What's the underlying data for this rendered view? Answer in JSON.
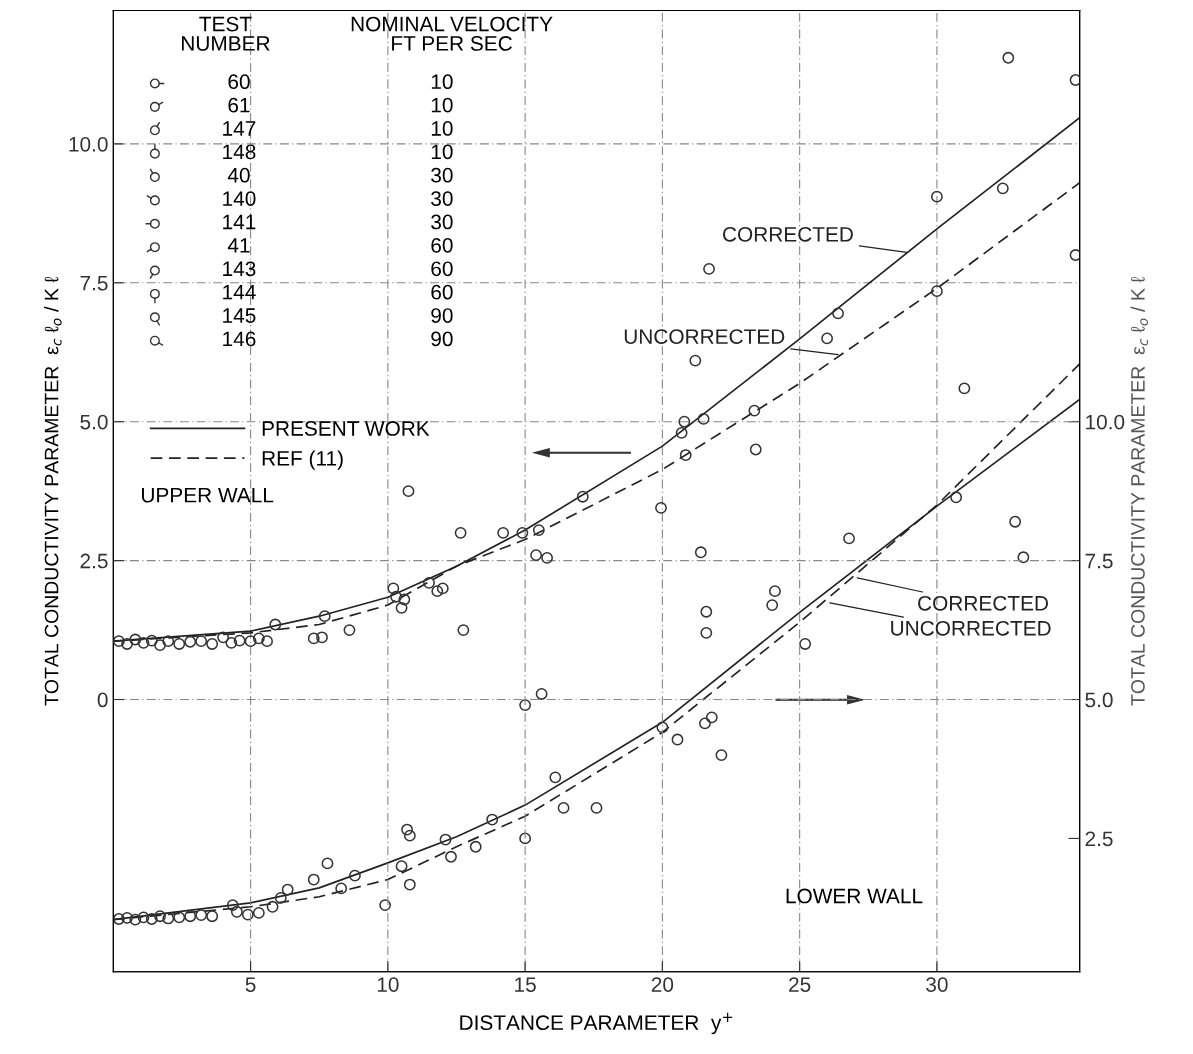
{
  "chart_data": {
    "type": "scatter",
    "xlabel": "DISTANCE PARAMETER  y$^{+}$",
    "ylabel": "TOTAL CONDUCTIVITY PARAMETER  ε$_{c}$ ℓ$_{o}$ / K ℓ",
    "y2label": "TOTAL CONDUCTIVITY PARAMETER  ε$_{c}$ ℓ$_{o}$ / K ℓ",
    "xlim": [
      0,
      35.2
    ],
    "xticks": [
      5,
      10,
      15,
      20,
      25,
      30
    ],
    "ylim": [
      -4.9,
      12.4
    ],
    "yticks": [
      {
        "value": 0,
        "label": "0"
      },
      {
        "value": 2.5,
        "label": "2.5"
      },
      {
        "value": 5.0,
        "label": "5.0"
      },
      {
        "value": 7.5,
        "label": "7.5"
      },
      {
        "value": 10.0,
        "label": "10.0"
      }
    ],
    "y2lim": [
      0.1,
      17.4
    ],
    "y2ticks": [
      {
        "value": 2.5,
        "label": "2.5"
      },
      {
        "value": 5.0,
        "label": "5.0"
      },
      {
        "value": 7.5,
        "label": "7.5"
      },
      {
        "value": 10.0,
        "label": "10.0"
      }
    ],
    "grid": true,
    "legend": "top left",
    "series": [
      {
        "color": "#333333",
        "marker": "circle",
        "x": [
          0.2,
          0.5,
          0.8,
          1.1,
          1.4,
          1.7,
          2.0,
          2.4,
          2.8,
          3.2,
          3.6,
          4.0,
          4.3,
          4.6,
          5.0,
          5.3,
          5.6,
          5.9,
          7.3,
          7.6,
          7.7,
          8.6,
          10.2,
          10.3,
          10.5,
          10.6,
          11.5,
          11.8,
          12.0,
          12.75,
          12.65,
          10.75,
          14.2,
          14.9,
          15.5,
          15.4,
          15.8,
          17.1,
          19.95,
          20.8,
          20.7,
          20.85,
          21.5,
          21.4,
          21.2,
          21.7,
          23.35,
          23.4,
          26.0,
          26.4,
          30.0,
          30.0,
          32.4,
          32.6,
          35.05,
          35.05
        ],
        "values": [
          1.05,
          1.0,
          1.08,
          1.02,
          1.06,
          0.98,
          1.05,
          1.0,
          1.04,
          1.05,
          1.0,
          1.12,
          1.02,
          1.06,
          1.05,
          1.1,
          1.05,
          1.35,
          1.1,
          1.12,
          1.5,
          1.25,
          2.0,
          1.85,
          1.65,
          1.8,
          2.1,
          1.95,
          2.0,
          1.25,
          3.0,
          3.75,
          3.0,
          3.0,
          3.05,
          2.6,
          2.55,
          3.65,
          3.45,
          5.0,
          4.8,
          4.4,
          5.05,
          2.65,
          6.1,
          7.75,
          5.2,
          4.5,
          6.5,
          6.95,
          7.35,
          9.05,
          9.2,
          11.55,
          11.15,
          8.0
        ]
      },
      {
        "axis": "y2",
        "color": "#333333",
        "marker": "circle",
        "x": [
          0.2,
          0.5,
          0.8,
          1.1,
          1.4,
          1.7,
          2.0,
          2.4,
          2.8,
          3.2,
          3.6,
          4.35,
          4.5,
          4.9,
          5.3,
          5.8,
          6.1,
          6.35,
          7.3,
          7.8,
          8.3,
          8.8,
          9.9,
          10.5,
          10.8,
          10.7,
          10.8,
          12.1,
          12.3,
          13.2,
          13.8,
          15.0,
          15.0,
          15.6,
          16.1,
          16.4,
          17.6,
          20.0,
          20.55,
          21.55,
          21.8,
          22.15,
          21.6,
          21.6,
          24.1,
          24.0,
          25.2,
          26.8,
          30.7,
          31.0,
          32.85,
          33.15
        ],
        "values": [
          1.05,
          1.07,
          1.04,
          1.08,
          1.05,
          1.1,
          1.06,
          1.08,
          1.1,
          1.12,
          1.1,
          1.3,
          1.18,
          1.13,
          1.16,
          1.27,
          1.43,
          1.58,
          1.76,
          2.05,
          1.6,
          1.83,
          1.3,
          2.0,
          1.67,
          2.66,
          2.55,
          2.48,
          2.17,
          2.35,
          2.84,
          2.5,
          4.9,
          5.1,
          3.6,
          3.05,
          3.05,
          4.5,
          4.28,
          4.57,
          4.68,
          4.0,
          6.58,
          6.2,
          6.95,
          6.7,
          6.0,
          7.9,
          8.64,
          10.6,
          8.2,
          7.56
        ]
      },
      {
        "type": "line",
        "name": "PRESENT WORK",
        "color": "#222222",
        "line_style": "solid",
        "x": [
          0,
          5,
          7.5,
          10,
          12.5,
          15,
          20,
          25,
          30,
          35.2
        ],
        "values": [
          1.05,
          1.23,
          1.5,
          1.84,
          2.4,
          3.05,
          4.56,
          6.49,
          8.47,
          10.47
        ]
      },
      {
        "type": "line",
        "name": "REF (11)",
        "color": "#222222",
        "line_style": "dashed",
        "x": [
          0,
          5,
          7.5,
          10,
          12.5,
          15,
          20,
          25,
          30,
          35.2
        ],
        "values": [
          1.05,
          1.2,
          1.35,
          1.7,
          2.4,
          2.88,
          4.14,
          5.69,
          7.4,
          9.3
        ]
      },
      {
        "type": "line",
        "axis": "y2",
        "color": "#222222",
        "line_style": "solid",
        "x": [
          0,
          5,
          7.5,
          10,
          12.5,
          15,
          20,
          25,
          30,
          35.2
        ],
        "values": [
          1.04,
          1.34,
          1.61,
          2.06,
          2.53,
          3.1,
          4.59,
          6.57,
          8.48,
          10.4
        ]
      },
      {
        "type": "line",
        "axis": "y2",
        "color": "#222222",
        "line_style": "dashed",
        "x": [
          0,
          5,
          7.5,
          10,
          12.5,
          15,
          20,
          25,
          30,
          35.2
        ],
        "values": [
          1.04,
          1.27,
          1.45,
          1.76,
          2.35,
          2.9,
          4.41,
          6.39,
          8.5,
          11.04
        ]
      }
    ],
    "annotations": [
      {
        "text": "CORRECTED",
        "x": 29.0,
        "y": 8.04
      },
      {
        "text": "UNCORRECTED",
        "x": 26.5,
        "y": 6.2
      },
      {
        "text": "CORRECTED",
        "x": 27.0,
        "y": 2.2
      },
      {
        "text": "UNCORRECTED",
        "x": 26.0,
        "y": 1.75
      },
      "TEST\nNUMBER",
      "NOMINAL VELOCITY\nFT PER SEC",
      "60",
      "10",
      "61",
      "10",
      "147",
      "10",
      "148",
      "10",
      "40",
      "30",
      "140",
      "30",
      "141",
      "30",
      "41",
      "60",
      "143",
      "60",
      "144",
      "60",
      "145",
      "90",
      "146",
      "90",
      "UPPER WALL",
      "LOWER WALL"
    ]
  }
}
